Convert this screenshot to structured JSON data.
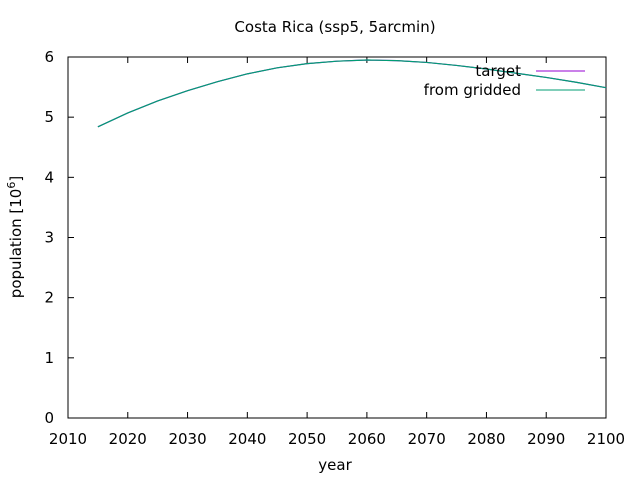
{
  "chart_data": {
    "type": "line",
    "title": "Costa Rica (ssp5, 5arcmin)",
    "xlabel": "year",
    "ylabel_prefix": "population [10",
    "ylabel_exp": "6",
    "ylabel_suffix": "]",
    "xlim": [
      2010,
      2100
    ],
    "ylim": [
      0,
      6
    ],
    "xticks": [
      "2010",
      "2020",
      "2030",
      "2040",
      "2050",
      "2060",
      "2070",
      "2080",
      "2090",
      "2100"
    ],
    "yticks": [
      "0",
      "1",
      "2",
      "3",
      "4",
      "5",
      "6"
    ],
    "legend_position": "top-right",
    "series": [
      {
        "name": "target",
        "color": "#9400d3",
        "x": [
          2015,
          2020,
          2025,
          2030,
          2035,
          2040,
          2045,
          2050,
          2055,
          2060,
          2065,
          2070,
          2075,
          2080,
          2085,
          2090,
          2095,
          2100
        ],
        "y": [
          4.84,
          5.07,
          5.27,
          5.44,
          5.59,
          5.72,
          5.82,
          5.89,
          5.93,
          5.95,
          5.94,
          5.91,
          5.86,
          5.8,
          5.73,
          5.66,
          5.58,
          5.49
        ]
      },
      {
        "name": "from gridded",
        "color": "#009e73",
        "x": [
          2015,
          2020,
          2025,
          2030,
          2035,
          2040,
          2045,
          2050,
          2055,
          2060,
          2065,
          2070,
          2075,
          2080,
          2085,
          2090,
          2095,
          2100
        ],
        "y": [
          4.84,
          5.07,
          5.27,
          5.44,
          5.59,
          5.72,
          5.82,
          5.89,
          5.93,
          5.95,
          5.94,
          5.91,
          5.86,
          5.8,
          5.73,
          5.66,
          5.58,
          5.49
        ]
      }
    ]
  }
}
